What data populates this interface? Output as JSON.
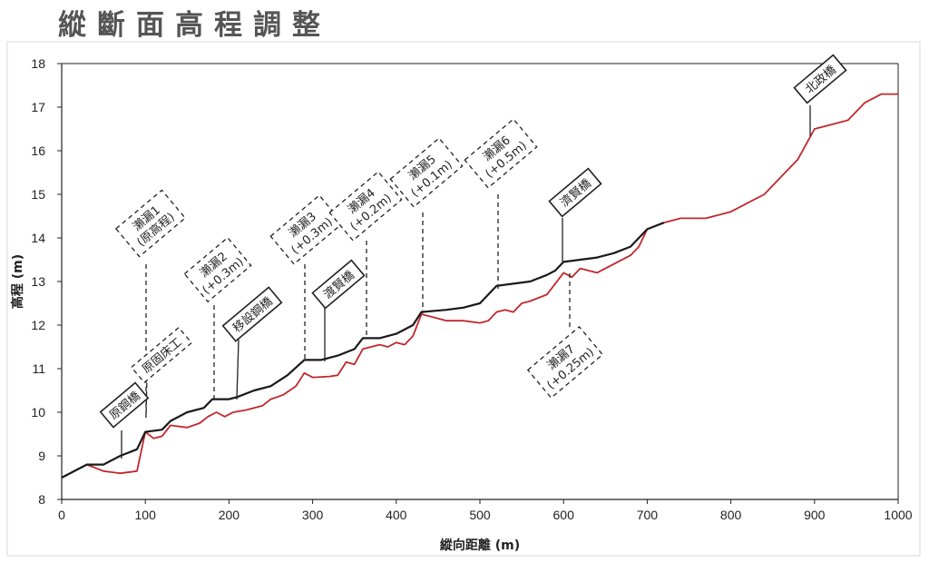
{
  "page": {
    "title": "縱斷面高程調整"
  },
  "chart_data": {
    "type": "line",
    "title": "",
    "xlabel": "縱向距離 (m)",
    "ylabel": "高程 (m)",
    "xlim": [
      0,
      1000
    ],
    "ylim": [
      8,
      18
    ],
    "xticks": [
      0,
      100,
      200,
      300,
      400,
      500,
      600,
      700,
      800,
      900,
      1000
    ],
    "yticks": [
      8,
      9,
      10,
      11,
      12,
      13,
      14,
      15,
      16,
      17,
      18
    ],
    "grid": false,
    "legend": "none",
    "series": [
      {
        "color": "#c0282c",
        "points": [
          [
            0,
            8.5
          ],
          [
            30,
            8.8
          ],
          [
            50,
            8.65
          ],
          [
            70,
            8.6
          ],
          [
            90,
            8.65
          ],
          [
            100,
            9.55
          ],
          [
            110,
            9.4
          ],
          [
            120,
            9.45
          ],
          [
            130,
            9.7
          ],
          [
            150,
            9.65
          ],
          [
            165,
            9.75
          ],
          [
            175,
            9.9
          ],
          [
            185,
            10.0
          ],
          [
            195,
            9.9
          ],
          [
            205,
            10.0
          ],
          [
            220,
            10.05
          ],
          [
            230,
            10.1
          ],
          [
            240,
            10.15
          ],
          [
            250,
            10.3
          ],
          [
            265,
            10.4
          ],
          [
            280,
            10.6
          ],
          [
            290,
            10.9
          ],
          [
            300,
            10.8
          ],
          [
            320,
            10.82
          ],
          [
            330,
            10.85
          ],
          [
            340,
            11.15
          ],
          [
            350,
            11.1
          ],
          [
            360,
            11.45
          ],
          [
            370,
            11.5
          ],
          [
            380,
            11.55
          ],
          [
            390,
            11.5
          ],
          [
            400,
            11.6
          ],
          [
            410,
            11.55
          ],
          [
            420,
            11.75
          ],
          [
            430,
            12.25
          ],
          [
            450,
            12.15
          ],
          [
            460,
            12.1
          ],
          [
            480,
            12.1
          ],
          [
            500,
            12.05
          ],
          [
            510,
            12.1
          ],
          [
            520,
            12.3
          ],
          [
            530,
            12.35
          ],
          [
            540,
            12.3
          ],
          [
            550,
            12.5
          ],
          [
            560,
            12.55
          ],
          [
            580,
            12.7
          ],
          [
            590,
            12.95
          ],
          [
            600,
            13.2
          ],
          [
            610,
            13.1
          ],
          [
            620,
            13.3
          ],
          [
            640,
            13.2
          ],
          [
            650,
            13.3
          ],
          [
            660,
            13.4
          ],
          [
            680,
            13.6
          ],
          [
            690,
            13.8
          ],
          [
            700,
            14.2
          ],
          [
            720,
            14.35
          ],
          [
            740,
            14.45
          ],
          [
            750,
            14.45
          ],
          [
            770,
            14.45
          ],
          [
            780,
            14.5
          ],
          [
            800,
            14.6
          ],
          [
            820,
            14.8
          ],
          [
            840,
            15.0
          ],
          [
            860,
            15.4
          ],
          [
            880,
            15.8
          ],
          [
            900,
            16.5
          ],
          [
            920,
            16.6
          ],
          [
            940,
            16.7
          ],
          [
            960,
            17.1
          ],
          [
            980,
            17.3
          ],
          [
            1000,
            17.3
          ]
        ]
      },
      {
        "color": "#1a1a1a",
        "points": [
          [
            0,
            8.5
          ],
          [
            30,
            8.8
          ],
          [
            50,
            8.8
          ],
          [
            70,
            9.0
          ],
          [
            90,
            9.15
          ],
          [
            100,
            9.55
          ],
          [
            120,
            9.6
          ],
          [
            130,
            9.8
          ],
          [
            150,
            10.0
          ],
          [
            170,
            10.1
          ],
          [
            180,
            10.3
          ],
          [
            200,
            10.3
          ],
          [
            210,
            10.35
          ],
          [
            230,
            10.5
          ],
          [
            250,
            10.6
          ],
          [
            270,
            10.85
          ],
          [
            290,
            11.2
          ],
          [
            310,
            11.2
          ],
          [
            330,
            11.3
          ],
          [
            350,
            11.45
          ],
          [
            360,
            11.7
          ],
          [
            380,
            11.7
          ],
          [
            400,
            11.8
          ],
          [
            420,
            12.0
          ],
          [
            430,
            12.3
          ],
          [
            460,
            12.35
          ],
          [
            480,
            12.4
          ],
          [
            500,
            12.5
          ],
          [
            520,
            12.9
          ],
          [
            540,
            12.95
          ],
          [
            560,
            13.0
          ],
          [
            580,
            13.15
          ],
          [
            590,
            13.25
          ],
          [
            600,
            13.45
          ],
          [
            620,
            13.5
          ],
          [
            640,
            13.55
          ],
          [
            660,
            13.65
          ],
          [
            680,
            13.8
          ],
          [
            700,
            14.2
          ],
          [
            720,
            14.35
          ]
        ]
      }
    ],
    "annotations": [
      {
        "id": "weir1",
        "label": "瀨漏1\n(原高程)"
      },
      {
        "id": "weir2",
        "label": "瀨漏2\n(+0.3m)"
      },
      {
        "id": "weir3",
        "label": "瀨漏3\n(+0.3m)"
      },
      {
        "id": "weir4",
        "label": "瀨漏4\n(+0.2m)"
      },
      {
        "id": "weir5",
        "label": "瀨漏5\n(+0.1m)"
      },
      {
        "id": "weir6",
        "label": "瀨漏6\n(+0.5m)"
      },
      {
        "id": "weir7",
        "label": "瀨漏7\n(+0.25m)"
      },
      {
        "id": "bed",
        "label": "原固床工"
      },
      {
        "id": "bridge1",
        "label": "原鋼橋"
      },
      {
        "id": "bridge2",
        "label": "移設鋼橋"
      },
      {
        "id": "bridge3",
        "label": "渡賢橋"
      },
      {
        "id": "bridge4",
        "label": "濟賢橋"
      },
      {
        "id": "bridge5",
        "label": "北政橋"
      }
    ]
  }
}
